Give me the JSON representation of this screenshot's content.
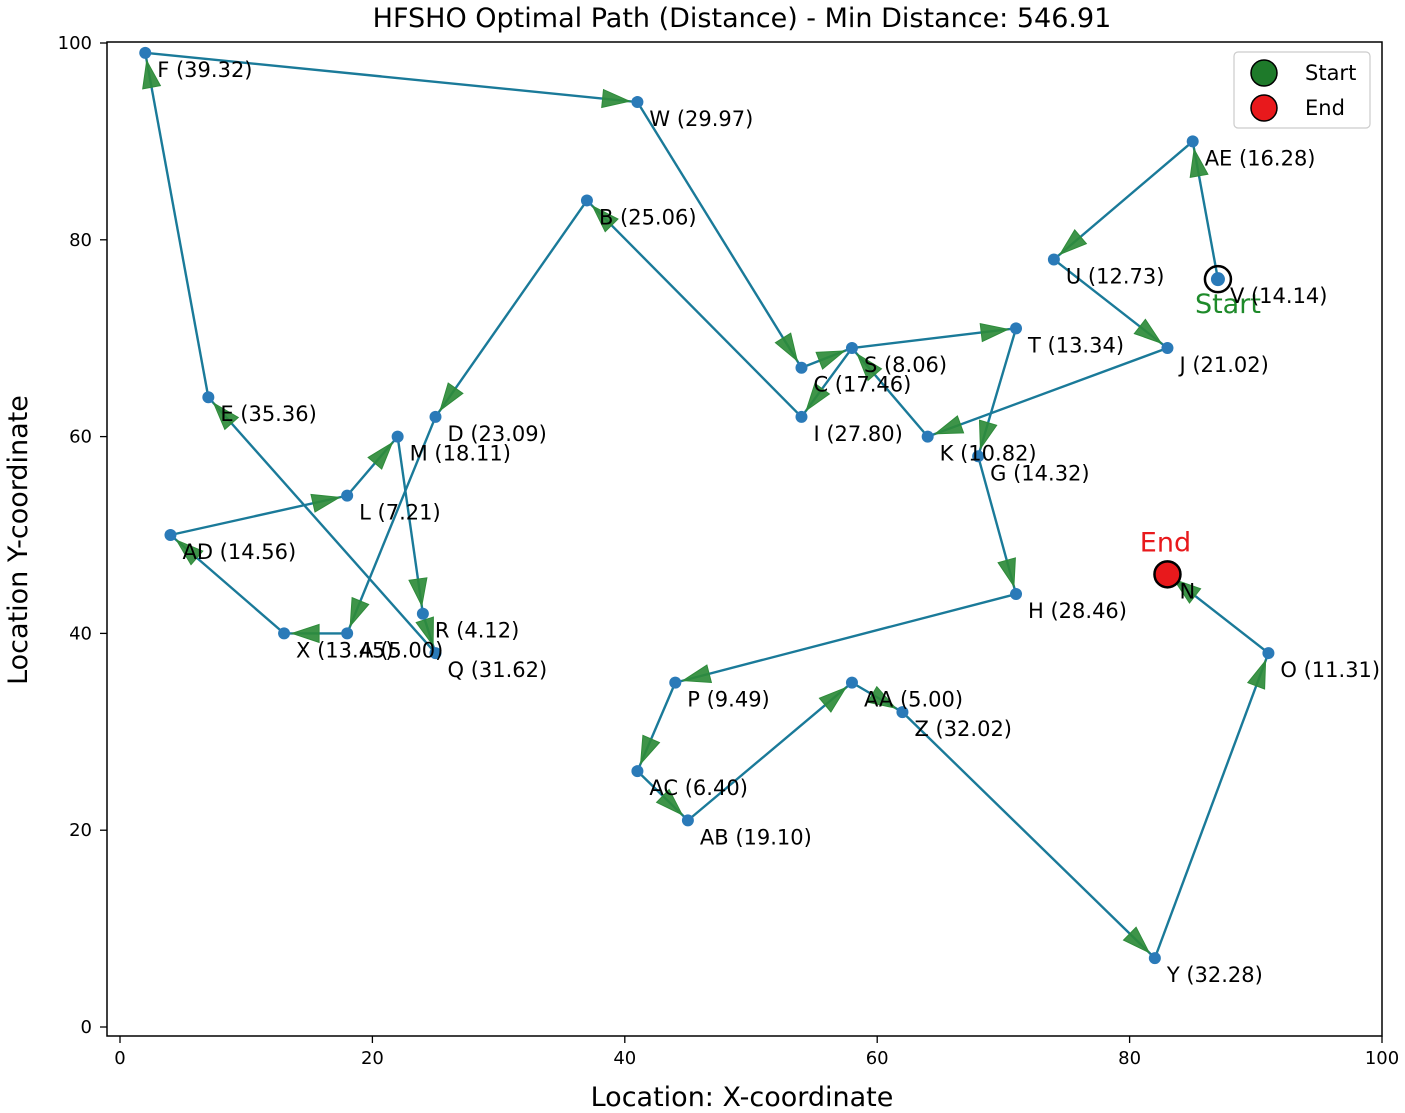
{
  "chart_data": {
    "type": "line",
    "title": "HFSHO Optimal Path (Distance) - Min Distance: 546.91",
    "xlabel": "Location: X-coordinate",
    "ylabel": "Location Y-coordinate",
    "xlim": [
      -1,
      100
    ],
    "ylim": [
      -1.5,
      100
    ],
    "xticks": [
      0,
      20,
      40,
      60,
      80,
      100
    ],
    "yticks": [
      0,
      20,
      40,
      60,
      80,
      100
    ],
    "legend": {
      "placement": "top-right",
      "entries": [
        "Start",
        "End"
      ]
    },
    "start": {
      "x": 87,
      "y": 76,
      "label": "Start"
    },
    "end": {
      "x": 83,
      "y": 46,
      "label": "End"
    },
    "path": [
      "V",
      "AE",
      "U",
      "J",
      "K",
      "S",
      "T",
      "G",
      "H",
      "P",
      "AC",
      "AB",
      "AA",
      "Z",
      "Y",
      "O",
      "N"
    ],
    "path_legs": [
      [
        "W",
        "C"
      ],
      [
        "C",
        "S"
      ],
      [
        "S",
        "T"
      ],
      [
        "T",
        "G"
      ],
      [
        "G",
        "H"
      ],
      [
        "H",
        "P"
      ],
      [
        "P",
        "AC"
      ],
      [
        "AC",
        "AB"
      ],
      [
        "AB",
        "AA"
      ],
      [
        "AA",
        "Z"
      ],
      [
        "Z",
        "Y"
      ],
      [
        "Y",
        "O"
      ],
      [
        "O",
        "N"
      ],
      [
        "V",
        "AE"
      ],
      [
        "AE",
        "U"
      ],
      [
        "U",
        "J"
      ],
      [
        "J",
        "K"
      ],
      [
        "K",
        "S"
      ],
      [
        "S",
        "I"
      ],
      [
        "I",
        "B"
      ],
      [
        "B",
        "D"
      ],
      [
        "D",
        "A"
      ],
      [
        "A",
        "X"
      ],
      [
        "X",
        "AD"
      ],
      [
        "AD",
        "L"
      ],
      [
        "L",
        "M"
      ],
      [
        "M",
        "R"
      ],
      [
        "R",
        "Q"
      ],
      [
        "Q",
        "E"
      ],
      [
        "E",
        "F"
      ],
      [
        "F",
        "W"
      ]
    ],
    "points": [
      {
        "name": "F",
        "x": 2,
        "y": 99,
        "label": "F (39.32)"
      },
      {
        "name": "W",
        "x": 41,
        "y": 94,
        "label": "W (29.97)"
      },
      {
        "name": "AE",
        "x": 85,
        "y": 90,
        "label": "AE (16.28)"
      },
      {
        "name": "B",
        "x": 37,
        "y": 84,
        "label": "B (25.06)"
      },
      {
        "name": "U",
        "x": 74,
        "y": 78,
        "label": "U (12.73)"
      },
      {
        "name": "V",
        "x": 87,
        "y": 76,
        "label": "V (14.14)"
      },
      {
        "name": "T",
        "x": 71,
        "y": 71,
        "label": "T (13.34)"
      },
      {
        "name": "J",
        "x": 83,
        "y": 69,
        "label": "J (21.02)"
      },
      {
        "name": "S",
        "x": 58,
        "y": 69,
        "label": "S (8.06)"
      },
      {
        "name": "C",
        "x": 54,
        "y": 67,
        "label": "C (17.46)"
      },
      {
        "name": "E",
        "x": 7,
        "y": 64,
        "label": "E (35.36)"
      },
      {
        "name": "D",
        "x": 25,
        "y": 62,
        "label": "D (23.09)"
      },
      {
        "name": "I",
        "x": 54,
        "y": 62,
        "label": "I (27.80)"
      },
      {
        "name": "M",
        "x": 22,
        "y": 60,
        "label": "M (18.11)"
      },
      {
        "name": "K",
        "x": 64,
        "y": 60,
        "label": "K (10.82)"
      },
      {
        "name": "G",
        "x": 68,
        "y": 58,
        "label": "G (14.32)"
      },
      {
        "name": "L",
        "x": 18,
        "y": 54,
        "label": "L (7.21)"
      },
      {
        "name": "AD",
        "x": 4,
        "y": 50,
        "label": "AD (14.56)"
      },
      {
        "name": "N",
        "x": 83,
        "y": 46,
        "label": "N"
      },
      {
        "name": "H",
        "x": 71,
        "y": 44,
        "label": "H (28.46)"
      },
      {
        "name": "R",
        "x": 24,
        "y": 42,
        "label": "R (4.12)"
      },
      {
        "name": "X",
        "x": 13,
        "y": 40,
        "label": "X (13.45)"
      },
      {
        "name": "A",
        "x": 18,
        "y": 40,
        "label": "A (5.00)"
      },
      {
        "name": "Q",
        "x": 25,
        "y": 38,
        "label": "Q (31.62)"
      },
      {
        "name": "O",
        "x": 91,
        "y": 38,
        "label": "O (11.31)"
      },
      {
        "name": "P",
        "x": 44,
        "y": 35,
        "label": "P (9.49)"
      },
      {
        "name": "AA",
        "x": 58,
        "y": 35,
        "label": "AA (5.00)"
      },
      {
        "name": "Z",
        "x": 62,
        "y": 32,
        "label": "Z (32.02)"
      },
      {
        "name": "AC",
        "x": 41,
        "y": 26,
        "label": "AC (6.40)"
      },
      {
        "name": "AB",
        "x": 45,
        "y": 21,
        "label": "AB (19.10)"
      },
      {
        "name": "Y",
        "x": 82,
        "y": 7,
        "label": "Y (32.28)"
      }
    ]
  },
  "colors": {
    "line": "#1a7a99",
    "point": "#2a7ab8",
    "arrow": "#2e8b3a",
    "start": "#1e7a2a",
    "end": "#e8191c",
    "start_text": "#1e8a2a",
    "end_text": "#e8191c"
  }
}
